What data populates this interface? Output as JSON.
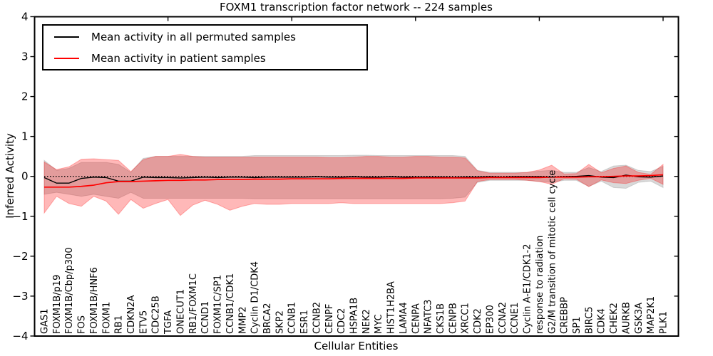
{
  "figure": {
    "title": "FOXM1 transcription factor network -- 224 samples",
    "background_color": "#ffffff",
    "axis_color": "#000000"
  },
  "chart_data": {
    "type": "line",
    "title": "FOXM1 transcription factor network -- 224 samples",
    "xlabel": "Cellular Entities",
    "ylabel": "Inferred Activity",
    "ylim": [
      -4,
      4
    ],
    "yticks": [
      4,
      3,
      2,
      1,
      0,
      -1,
      -2,
      -3,
      -4
    ],
    "xtick_step": 10,
    "grid": false,
    "legend_position": "upper left",
    "zero_line": {
      "style": "dotted",
      "color": "#000000",
      "y": 0
    },
    "categories": [
      "GAS1",
      "FOXM1B/p19",
      "FOXM1B/Cbp/p300",
      "FOS",
      "FOXM1B/HNF6",
      "FOXM1",
      "RB1",
      "CDKN2A",
      "ETV5",
      "CDC25B",
      "TGFA",
      "ONECUT1",
      "RB1/FOXM1C",
      "CCND1",
      "FOXM1C/SP1",
      "CCNB1/CDK1",
      "MMP2",
      "Cyclin D1/CDK4",
      "BRCA2",
      "SKP2",
      "CCNB1",
      "ESR1",
      "CCNB2",
      "CENPF",
      "CDC2",
      "HSPA1B",
      "NEK2",
      "MYC",
      "HIST1H2BA",
      "LAMA4",
      "CENPA",
      "NFATC3",
      "CKS1B",
      "CENPB",
      "XRCC1",
      "CDK2",
      "EP300",
      "CCNA2",
      "CCNE1",
      "Cyclin A-E1/CDK1-2",
      "response to radiation",
      "G2/M transition of mitotic cell cycle",
      "CREBBP",
      "SP1",
      "BIRC5",
      "CDK4",
      "CHEK2",
      "AURKB",
      "GSK3A",
      "MAP2K1",
      "PLK1"
    ],
    "series": [
      {
        "name": "Mean activity in all permuted samples",
        "color": "#000000",
        "values": [
          -0.03,
          -0.17,
          -0.17,
          -0.05,
          -0.02,
          -0.03,
          -0.12,
          -0.12,
          -0.02,
          -0.03,
          -0.03,
          -0.04,
          -0.03,
          -0.02,
          -0.03,
          -0.02,
          -0.02,
          -0.03,
          -0.02,
          -0.02,
          -0.02,
          -0.02,
          -0.01,
          -0.02,
          -0.02,
          -0.01,
          -0.02,
          -0.02,
          -0.01,
          -0.02,
          -0.02,
          -0.02,
          -0.02,
          -0.03,
          -0.02,
          -0.02,
          -0.01,
          -0.02,
          -0.01,
          -0.01,
          -0.01,
          -0.02,
          -0.01,
          0,
          0.02,
          -0.02,
          -0.03,
          0.03,
          -0.01,
          -0.02,
          0.01
        ]
      },
      {
        "name": "Mean activity in patient samples",
        "color": "#ff0000",
        "values": [
          -0.27,
          -0.27,
          -0.27,
          -0.25,
          -0.22,
          -0.16,
          -0.13,
          -0.13,
          -0.12,
          -0.11,
          -0.1,
          -0.1,
          -0.09,
          -0.09,
          -0.08,
          -0.08,
          -0.08,
          -0.07,
          -0.07,
          -0.07,
          -0.06,
          -0.06,
          -0.06,
          -0.06,
          -0.05,
          -0.05,
          -0.05,
          -0.05,
          -0.05,
          -0.05,
          -0.04,
          -0.04,
          -0.04,
          -0.04,
          -0.04,
          -0.04,
          -0.03,
          -0.03,
          -0.03,
          -0.03,
          -0.03,
          -0.02,
          -0.02,
          -0.02,
          -0.01,
          -0.01,
          0,
          0.01,
          0.01,
          0.02,
          0.04
        ]
      }
    ],
    "bands": [
      {
        "name": "permuted-samples-std-band",
        "color": "#808080",
        "fill_opacity": 0.3,
        "upper": [
          0.4,
          0.15,
          0.2,
          0.35,
          0.35,
          0.35,
          0.3,
          0.1,
          0.45,
          0.5,
          0.5,
          0.5,
          0.5,
          0.5,
          0.5,
          0.5,
          0.5,
          0.52,
          0.52,
          0.52,
          0.52,
          0.52,
          0.52,
          0.52,
          0.52,
          0.53,
          0.53,
          0.52,
          0.52,
          0.52,
          0.52,
          0.52,
          0.52,
          0.52,
          0.5,
          0.15,
          0.1,
          0.1,
          0.1,
          0.1,
          0.13,
          0.15,
          0.1,
          0.1,
          0.22,
          0.12,
          0.26,
          0.28,
          0.15,
          0.12,
          0.25
        ],
        "lower": [
          -0.45,
          -0.4,
          -0.45,
          -0.5,
          -0.45,
          -0.5,
          -0.55,
          -0.4,
          -0.55,
          -0.55,
          -0.55,
          -0.55,
          -0.55,
          -0.55,
          -0.55,
          -0.55,
          -0.55,
          -0.56,
          -0.56,
          -0.56,
          -0.56,
          -0.56,
          -0.56,
          -0.56,
          -0.56,
          -0.56,
          -0.56,
          -0.56,
          -0.56,
          -0.56,
          -0.56,
          -0.56,
          -0.56,
          -0.55,
          -0.52,
          -0.15,
          -0.1,
          -0.1,
          -0.1,
          -0.1,
          -0.13,
          -0.15,
          -0.1,
          -0.1,
          -0.25,
          -0.12,
          -0.28,
          -0.3,
          -0.15,
          -0.12,
          -0.28
        ]
      },
      {
        "name": "patient-samples-std-band",
        "color": "#ff0000",
        "fill_opacity": 0.28,
        "upper": [
          0.36,
          0.17,
          0.24,
          0.43,
          0.44,
          0.42,
          0.4,
          0.12,
          0.42,
          0.5,
          0.5,
          0.55,
          0.5,
          0.48,
          0.48,
          0.48,
          0.48,
          0.48,
          0.48,
          0.48,
          0.48,
          0.48,
          0.48,
          0.47,
          0.47,
          0.48,
          0.5,
          0.5,
          0.48,
          0.48,
          0.5,
          0.5,
          0.48,
          0.48,
          0.46,
          0.14,
          0.08,
          0.08,
          0.08,
          0.1,
          0.16,
          0.28,
          0.06,
          0.07,
          0.3,
          0.09,
          0.2,
          0.26,
          0.1,
          0.05,
          0.3
        ],
        "lower": [
          -0.92,
          -0.5,
          -0.68,
          -0.75,
          -0.5,
          -0.62,
          -0.95,
          -0.58,
          -0.8,
          -0.68,
          -0.58,
          -0.98,
          -0.72,
          -0.6,
          -0.7,
          -0.85,
          -0.75,
          -0.68,
          -0.7,
          -0.7,
          -0.68,
          -0.68,
          -0.68,
          -0.68,
          -0.66,
          -0.68,
          -0.68,
          -0.68,
          -0.68,
          -0.68,
          -0.68,
          -0.68,
          -0.68,
          -0.66,
          -0.62,
          -0.13,
          -0.08,
          -0.08,
          -0.08,
          -0.1,
          -0.13,
          -0.2,
          -0.06,
          -0.07,
          -0.26,
          -0.09,
          -0.16,
          -0.18,
          -0.1,
          -0.05,
          -0.2
        ]
      }
    ]
  },
  "legend": {
    "entries": [
      {
        "label": "Mean activity in all permuted samples",
        "color": "#000000"
      },
      {
        "label": "Mean activity in patient samples",
        "color": "#ff0000"
      }
    ]
  }
}
